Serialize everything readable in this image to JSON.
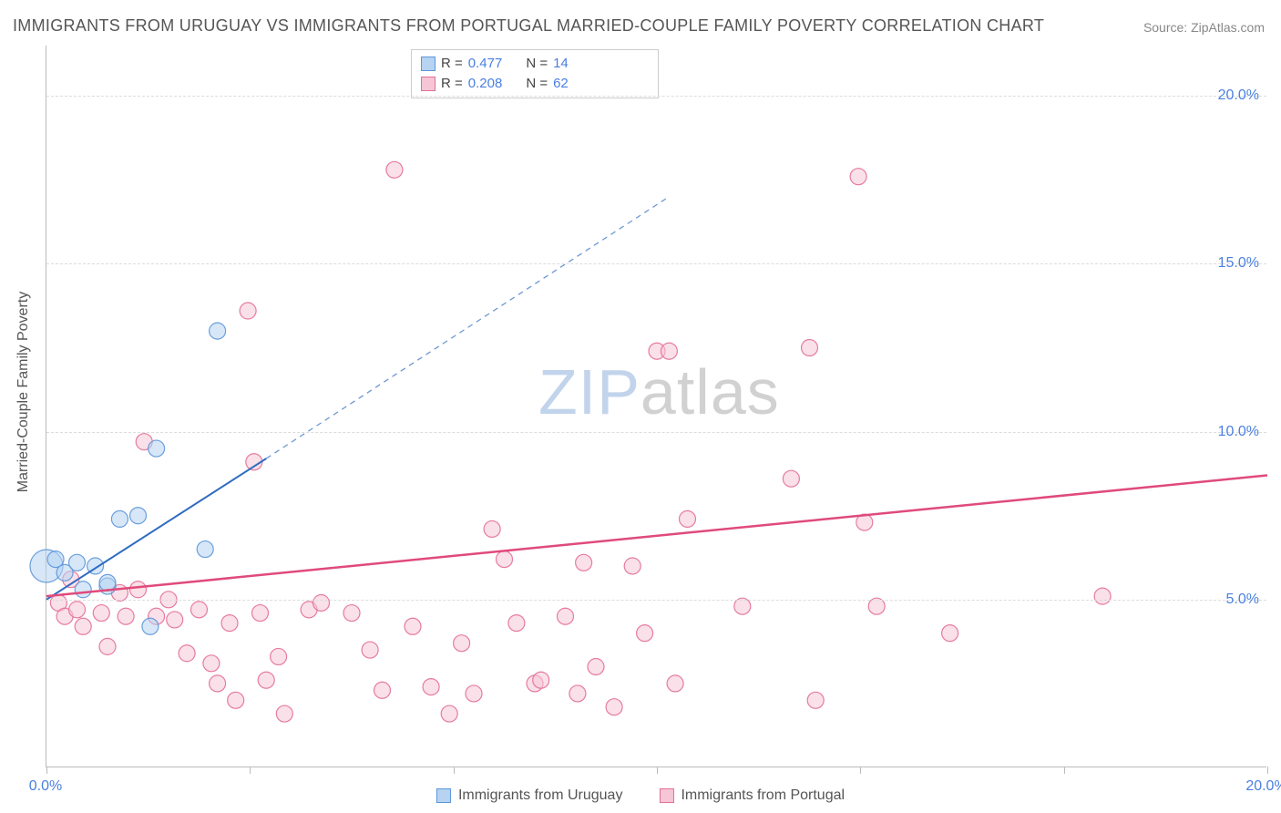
{
  "title": "IMMIGRANTS FROM URUGUAY VS IMMIGRANTS FROM PORTUGAL MARRIED-COUPLE FAMILY POVERTY CORRELATION CHART",
  "source": "Source: ZipAtlas.com",
  "watermark_zip": "ZIP",
  "watermark_atlas": "atlas",
  "y_axis_title": "Married-Couple Family Poverty",
  "chart": {
    "type": "scatter",
    "xlim": [
      0,
      20
    ],
    "ylim": [
      0,
      21.5
    ],
    "grid_y": [
      5,
      10,
      15,
      20
    ],
    "grid_color": "#dcdcdc",
    "y_tick_labels": [
      {
        "v": 5,
        "label": "5.0%"
      },
      {
        "v": 10,
        "label": "10.0%"
      },
      {
        "v": 15,
        "label": "15.0%"
      },
      {
        "v": 20,
        "label": "20.0%"
      }
    ],
    "x_tick_positions": [
      0,
      3.33,
      6.67,
      10,
      13.33,
      16.67,
      20
    ],
    "x_tick_labels": [
      {
        "v": 0,
        "label": "0.0%"
      },
      {
        "v": 20,
        "label": "20.0%"
      }
    ],
    "axis_label_color": "#4a7fe0",
    "axis_label_fontsize": 16,
    "plot_bg": "#ffffff",
    "marker_radius": 9,
    "series": [
      {
        "key": "uruguay",
        "label": "Immigrants from Uruguay",
        "fill": "#b6d3f2",
        "stroke": "#5c96d8",
        "stroke_opacity": 0.9,
        "fill_opacity": 0.55,
        "R": "0.477",
        "N": "14",
        "trend": {
          "x1": 0,
          "y1": 5.0,
          "x2": 3.6,
          "y2": 9.2,
          "dash_x2": 10.2,
          "dash_y2": 17.0,
          "color": "#2f6cc0",
          "width": 2
        },
        "points": [
          {
            "x": 0.0,
            "y": 6.0,
            "r": 18
          },
          {
            "x": 0.15,
            "y": 6.2
          },
          {
            "x": 0.3,
            "y": 5.8
          },
          {
            "x": 0.5,
            "y": 6.1
          },
          {
            "x": 0.8,
            "y": 6.0
          },
          {
            "x": 0.6,
            "y": 5.3
          },
          {
            "x": 1.0,
            "y": 5.4
          },
          {
            "x": 1.2,
            "y": 7.4
          },
          {
            "x": 1.5,
            "y": 7.5
          },
          {
            "x": 1.8,
            "y": 9.5
          },
          {
            "x": 1.7,
            "y": 4.2
          },
          {
            "x": 2.6,
            "y": 6.5
          },
          {
            "x": 2.8,
            "y": 13.0
          },
          {
            "x": 1.0,
            "y": 5.5
          }
        ]
      },
      {
        "key": "portugal",
        "label": "Immigrants from Portugal",
        "fill": "#f6c6d6",
        "stroke": "#e36f96",
        "stroke_opacity": 0.9,
        "fill_opacity": 0.55,
        "R": "0.208",
        "N": "62",
        "trend": {
          "x1": 0,
          "y1": 5.1,
          "x2": 20,
          "y2": 8.7,
          "color": "#e04a7b",
          "width": 2.5
        },
        "points": [
          {
            "x": 0.2,
            "y": 4.9
          },
          {
            "x": 0.3,
            "y": 4.5
          },
          {
            "x": 0.5,
            "y": 4.7
          },
          {
            "x": 0.6,
            "y": 4.2
          },
          {
            "x": 0.9,
            "y": 4.6
          },
          {
            "x": 1.0,
            "y": 3.6
          },
          {
            "x": 1.2,
            "y": 5.2
          },
          {
            "x": 1.3,
            "y": 4.5
          },
          {
            "x": 1.5,
            "y": 5.3
          },
          {
            "x": 1.6,
            "y": 9.7
          },
          {
            "x": 1.8,
            "y": 4.5
          },
          {
            "x": 2.0,
            "y": 5.0
          },
          {
            "x": 2.1,
            "y": 4.4
          },
          {
            "x": 2.3,
            "y": 3.4
          },
          {
            "x": 2.5,
            "y": 4.7
          },
          {
            "x": 2.7,
            "y": 3.1
          },
          {
            "x": 2.8,
            "y": 2.5
          },
          {
            "x": 3.0,
            "y": 4.3
          },
          {
            "x": 3.1,
            "y": 2.0
          },
          {
            "x": 3.3,
            "y": 13.6
          },
          {
            "x": 3.4,
            "y": 9.1
          },
          {
            "x": 3.5,
            "y": 4.6
          },
          {
            "x": 3.6,
            "y": 2.6
          },
          {
            "x": 3.8,
            "y": 3.3
          },
          {
            "x": 3.9,
            "y": 1.6
          },
          {
            "x": 4.3,
            "y": 4.7
          },
          {
            "x": 4.5,
            "y": 4.9
          },
          {
            "x": 5.0,
            "y": 4.6
          },
          {
            "x": 5.3,
            "y": 3.5
          },
          {
            "x": 5.5,
            "y": 2.3
          },
          {
            "x": 5.7,
            "y": 17.8
          },
          {
            "x": 6.0,
            "y": 4.2
          },
          {
            "x": 6.3,
            "y": 2.4
          },
          {
            "x": 6.6,
            "y": 1.6
          },
          {
            "x": 6.8,
            "y": 3.7
          },
          {
            "x": 7.0,
            "y": 2.2
          },
          {
            "x": 7.3,
            "y": 7.1
          },
          {
            "x": 7.5,
            "y": 6.2
          },
          {
            "x": 7.7,
            "y": 4.3
          },
          {
            "x": 8.0,
            "y": 2.5
          },
          {
            "x": 8.1,
            "y": 2.6
          },
          {
            "x": 8.5,
            "y": 4.5
          },
          {
            "x": 8.7,
            "y": 2.2
          },
          {
            "x": 8.8,
            "y": 6.1
          },
          {
            "x": 9.0,
            "y": 3.0
          },
          {
            "x": 9.3,
            "y": 1.8
          },
          {
            "x": 9.6,
            "y": 6.0
          },
          {
            "x": 9.8,
            "y": 4.0
          },
          {
            "x": 10.0,
            "y": 12.4
          },
          {
            "x": 10.2,
            "y": 12.4
          },
          {
            "x": 10.3,
            "y": 2.5
          },
          {
            "x": 10.5,
            "y": 7.4
          },
          {
            "x": 11.4,
            "y": 4.8
          },
          {
            "x": 12.2,
            "y": 8.6
          },
          {
            "x": 12.5,
            "y": 12.5
          },
          {
            "x": 12.6,
            "y": 2.0
          },
          {
            "x": 13.3,
            "y": 17.6
          },
          {
            "x": 13.4,
            "y": 7.3
          },
          {
            "x": 13.6,
            "y": 4.8
          },
          {
            "x": 14.8,
            "y": 4.0
          },
          {
            "x": 17.3,
            "y": 5.1
          },
          {
            "x": 0.4,
            "y": 5.6
          }
        ]
      }
    ]
  },
  "legend_box": {
    "r_label": "R =",
    "n_label": "N ="
  },
  "bottom_legend": {
    "items": [
      "uruguay",
      "portugal"
    ]
  }
}
